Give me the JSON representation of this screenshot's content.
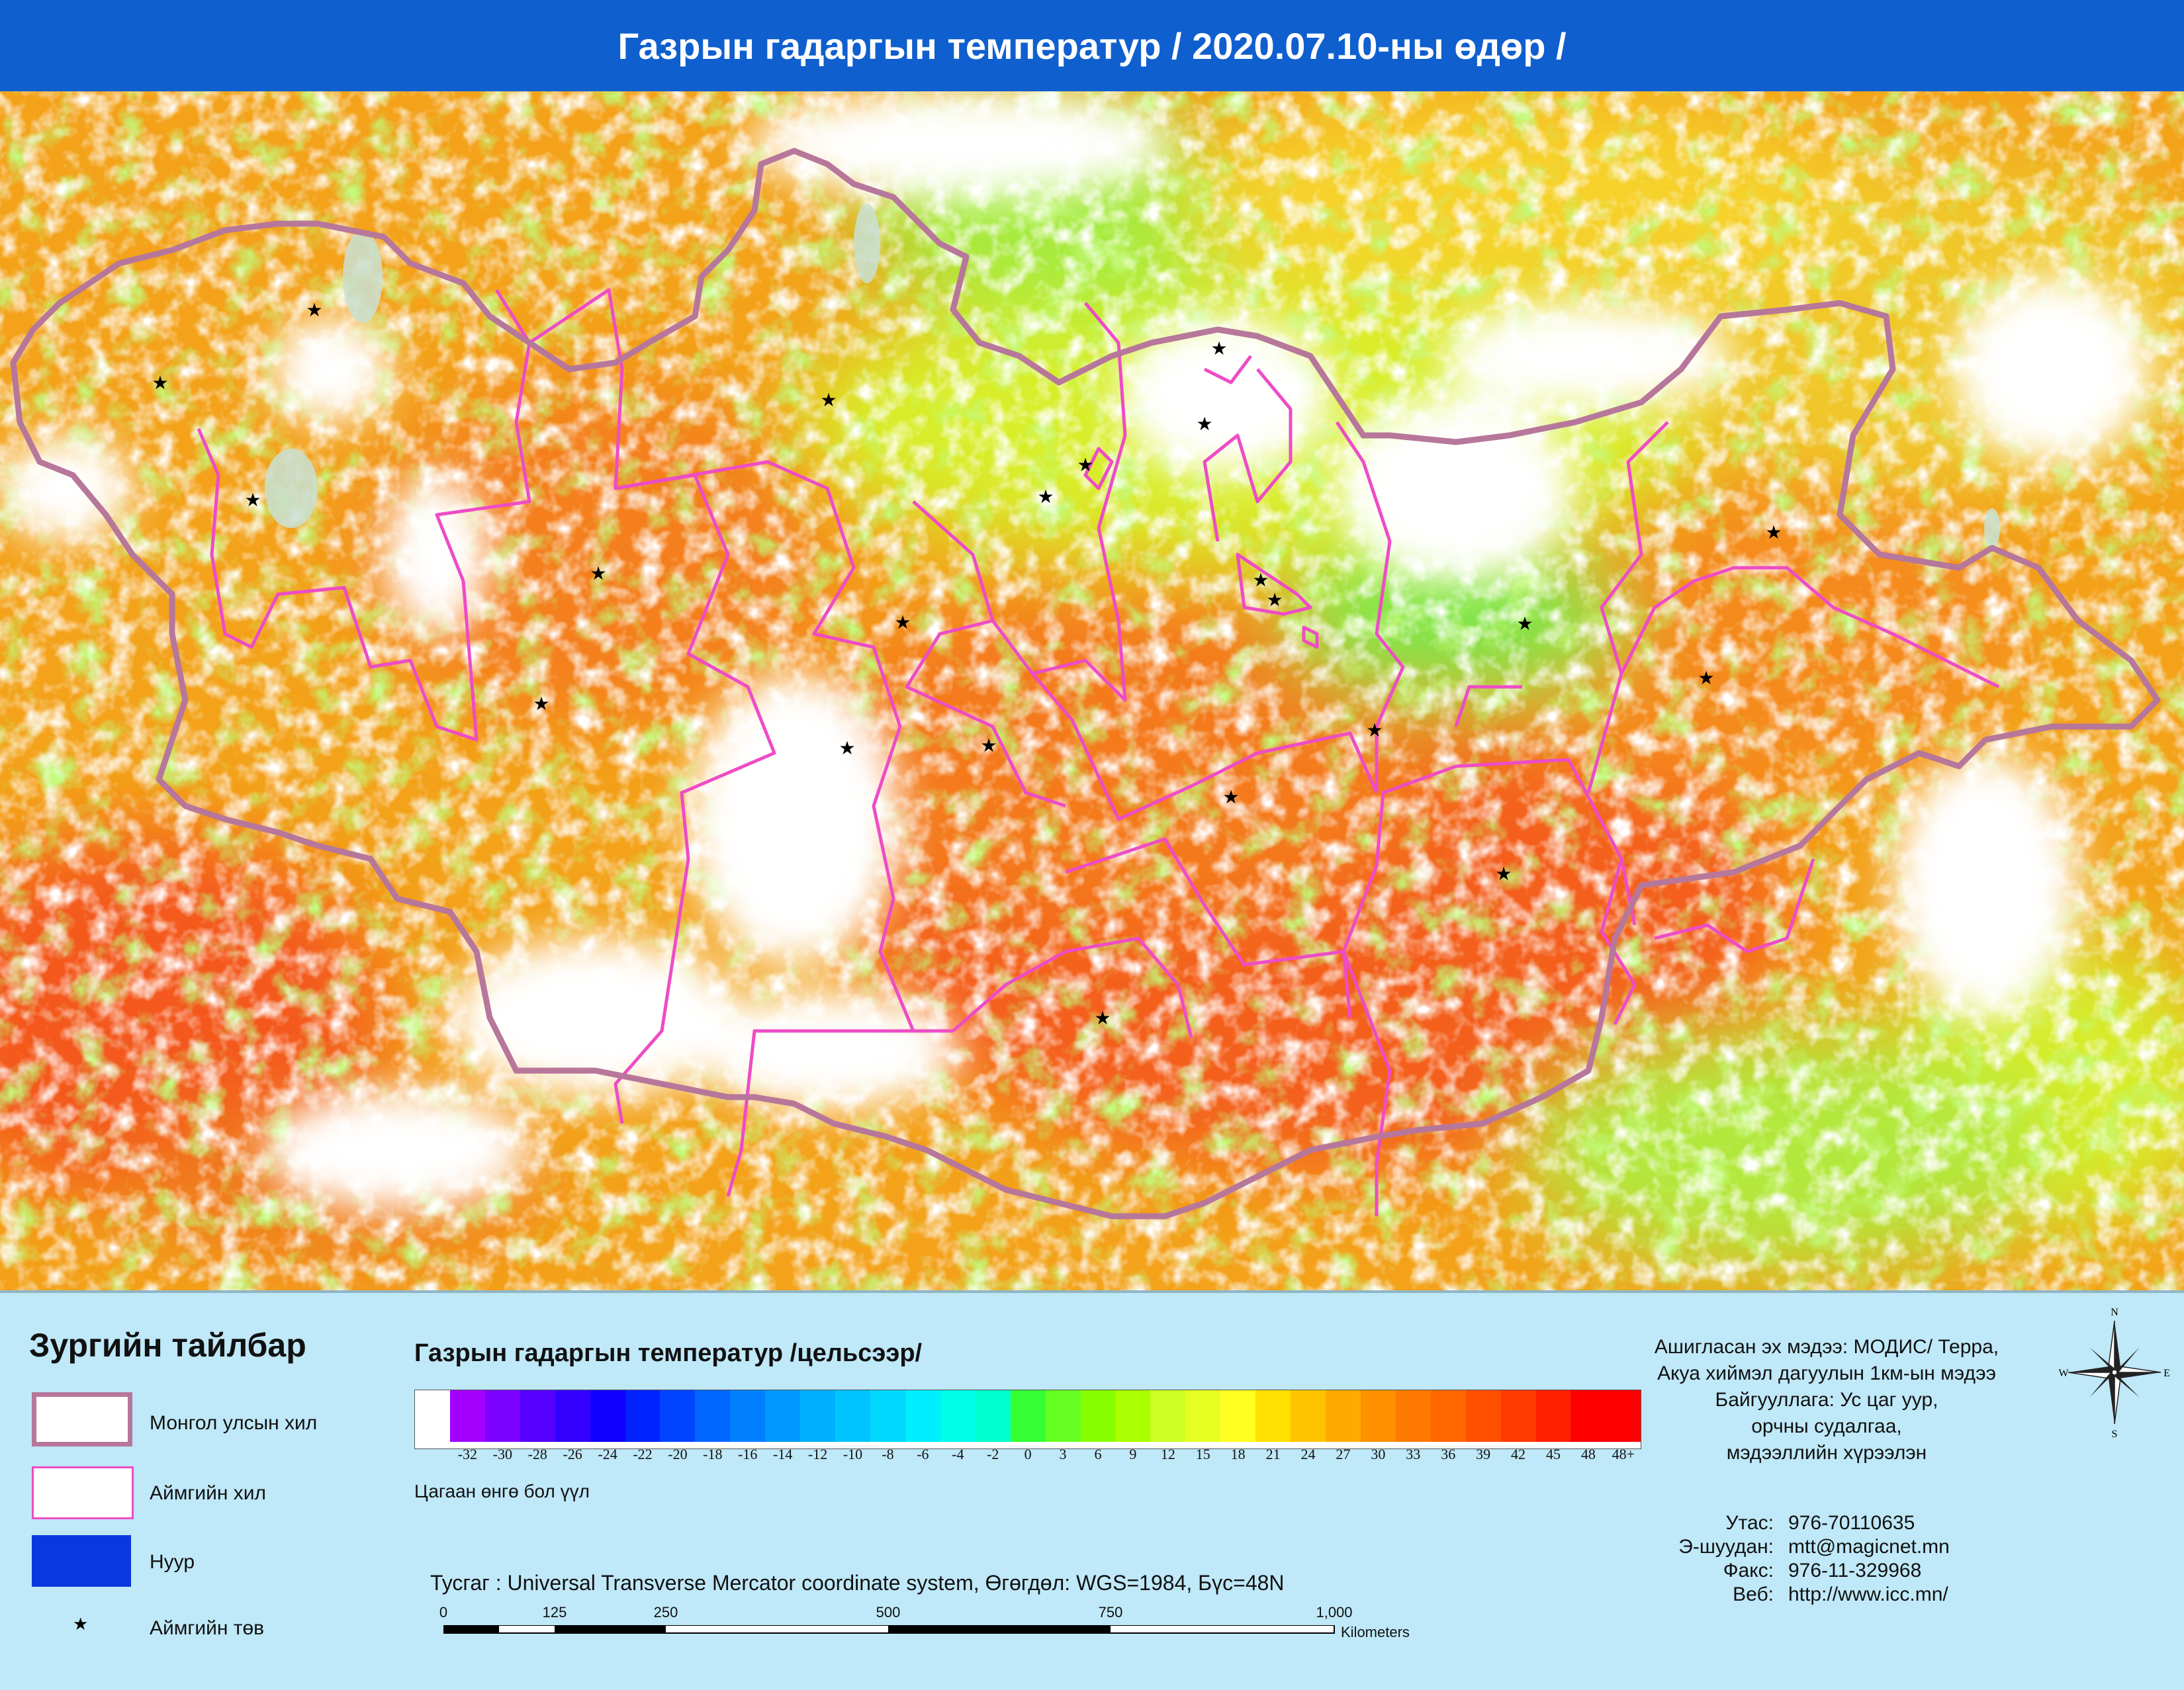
{
  "header": {
    "title": "Газрын гадаргын температур / 2020.07.10-ны өдөр /"
  },
  "legend": {
    "heading": "Зургийн тайлбар",
    "items": [
      {
        "label": "Монгол улсын хил"
      },
      {
        "label": "Аймгийн хил"
      },
      {
        "label": "Нуур"
      },
      {
        "label": "Аймгийн төв"
      }
    ]
  },
  "colors": {
    "header_bg": "#0f5fcf",
    "country_border": "#b7779a",
    "aimag_border": "#ee4cc6",
    "lake": "#0a38e0",
    "panel_bg": "#bfe8f8"
  },
  "temperature_scale": {
    "title": "Газрын гадаргын температур /цельсээр/",
    "ticks": [
      "-32",
      "-30",
      "-28",
      "-26",
      "-24",
      "-22",
      "-20",
      "-18",
      "-16",
      "-14",
      "-12",
      "-10",
      "-8",
      "-6",
      "-4",
      "-2",
      "0",
      "3",
      "6",
      "9",
      "12",
      "15",
      "18",
      "21",
      "24",
      "27",
      "30",
      "33",
      "36",
      "39",
      "42",
      "45",
      "48",
      "48+"
    ],
    "white_note": "Цагаан өнгө бол үүл"
  },
  "projection": {
    "note": "Тусгаг : Universal Transverse Mercator coordinate system, Өгөгдөл: WGS=1984, Бүс=48N"
  },
  "scalebar": {
    "labels": [
      "0",
      "125",
      "250",
      "500",
      "750",
      "1,000"
    ],
    "units": "Kilometers"
  },
  "info": {
    "lines": [
      "Ашигласан эх мэдээ: МОДИС/ Терра,",
      "Акуа хиймэл дагуулын 1км-ын мэдээ",
      "Байгууллага: Ус цаг уур,",
      "орчны судалгаа,",
      "мэдээллийн хүрээлэн"
    ]
  },
  "contact": {
    "phone_key": "Утас:",
    "phone_value": "976-70110635",
    "email_key": "Э-шуудан:",
    "email_value": "mtt@magicnet.mn",
    "fax_key": "Факс:",
    "fax_value": "976-11-329968",
    "web_key": "Веб:",
    "web_value": "http://www.icc.mn/"
  },
  "compass": {
    "n": "N",
    "s": "S",
    "e": "E",
    "w": "W"
  }
}
